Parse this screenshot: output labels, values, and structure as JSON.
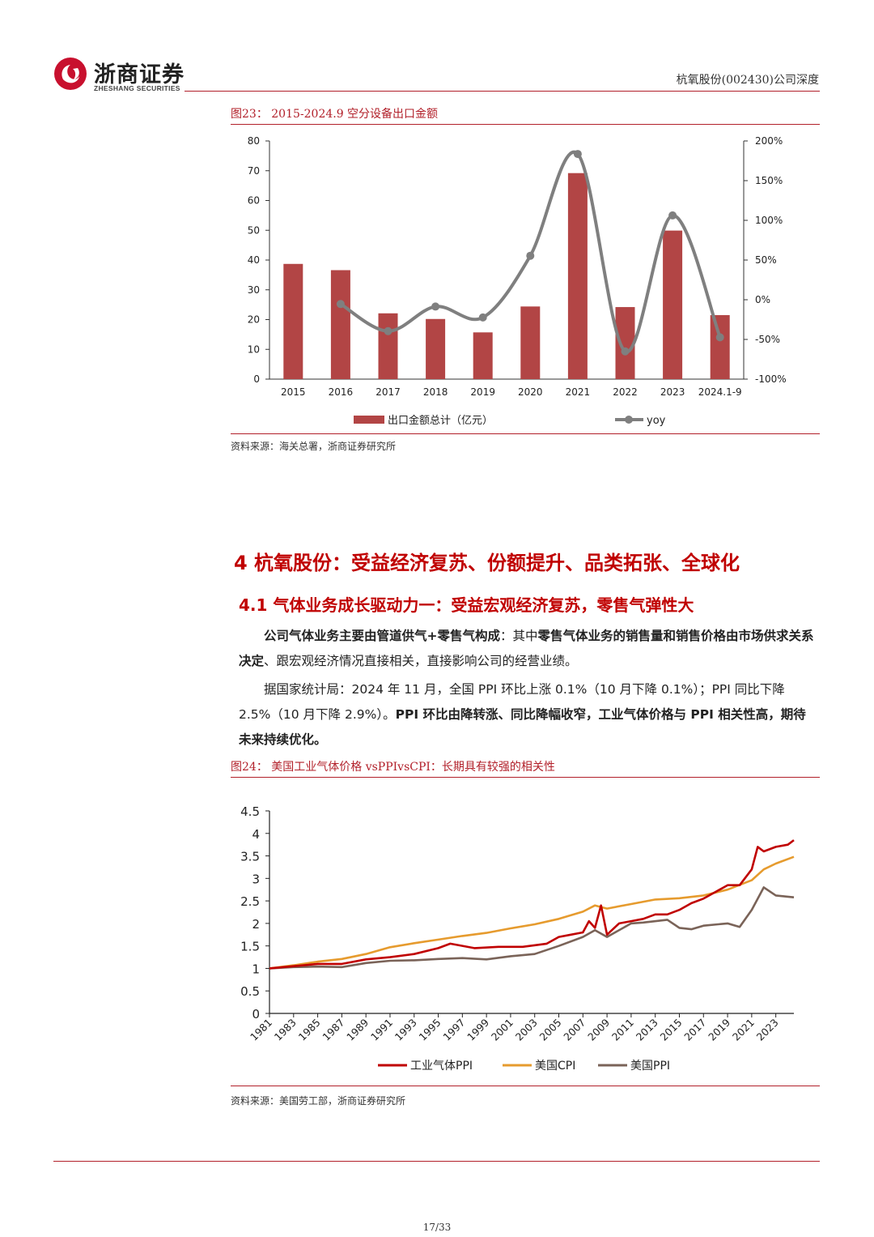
{
  "header": {
    "logo_cn": "浙商证券",
    "logo_en": "ZHESHANG SECURITIES",
    "report_title": "杭氧股份(002430)公司深度"
  },
  "figure23": {
    "title": "图23：  2015-2024.9 空分设备出口金额",
    "source": "资料来源：海关总署，浙商证券研究所"
  },
  "section": {
    "h1": "4 杭氧股份：受益经济复苏、份额提升、品类拓张、全球化",
    "h2": "4.1 气体业务成长驱动力一：受益宏观经济复苏，零售气弹性大",
    "p1_bold": "公司气体业务主要由管道供气+零售气构成",
    "p1_mid": "：其中",
    "p1_bold2": "零售气体业务的销售量和销售价格由市场供求关系决定",
    "p1_rest": "、跟宏观经济情况直接相关，直接影响公司的经营业绩。",
    "p2_text": "据国家统计局：2024 年 11 月，全国 PPI 环比上涨 0.1%（10 月下降 0.1%）；PPI 同比下降 2.5%（10 月下降 2.9%）。",
    "p2_bold": "PPI 环比由降转涨、同比降幅收窄，工业气体价格与 PPI 相关性高，期待未来持续优化。"
  },
  "figure24": {
    "title": "图24：  美国工业气体价格 vsPPIvsCPI：长期具有较强的相关性",
    "source": "资料来源：美国劳工部，浙商证券研究所"
  },
  "footer": {
    "page": "17/33"
  },
  "chart_data": [
    {
      "type": "bar",
      "categories": [
        "2015",
        "2016",
        "2017",
        "2018",
        "2019",
        "2020",
        "2021",
        "2022",
        "2023",
        "2024.1-9"
      ],
      "series": [
        {
          "name": "出口金额总计（亿元）",
          "type": "bar",
          "axis": "left",
          "values": [
            38.7,
            36.6,
            22.1,
            20.2,
            15.7,
            24.4,
            69.2,
            24.2,
            49.9,
            21.5
          ],
          "color": "#b24545"
        },
        {
          "name": "yoy",
          "type": "line",
          "axis": "right",
          "values": [
            null,
            -5.4,
            -39.6,
            -8.6,
            -22.3,
            55.4,
            183.6,
            -65.0,
            106.2,
            -47.3
          ],
          "color": "#7f7f7f"
        }
      ],
      "ylim_left": [
        0,
        80
      ],
      "yticks_left": [
        "0",
        "10",
        "20",
        "30",
        "40",
        "50",
        "60",
        "70",
        "80"
      ],
      "ylim_right": [
        -100,
        200
      ],
      "yticks_right": [
        "-100%",
        "-50%",
        "0%",
        "50%",
        "100%",
        "150%",
        "200%"
      ],
      "legend": "bottom"
    },
    {
      "type": "line",
      "x_ticks": [
        "1981",
        "1983",
        "1985",
        "1987",
        "1989",
        "1991",
        "1993",
        "1995",
        "1997",
        "1999",
        "2001",
        "2003",
        "2005",
        "2007",
        "2009",
        "2011",
        "2013",
        "2015",
        "2017",
        "2019",
        "2021",
        "2023"
      ],
      "ylim": [
        0,
        4.5
      ],
      "yticks": [
        "0",
        "0.5",
        "1",
        "1.5",
        "2",
        "2.5",
        "3",
        "3.5",
        "4",
        "4.5"
      ],
      "series": [
        {
          "name": "工业气体PPI",
          "color": "#c00000",
          "x": [
            1981,
            1983,
            1985,
            1987,
            1989,
            1991,
            1993,
            1995,
            1996,
            1998,
            2000,
            2002,
            2004,
            2005,
            2006,
            2007,
            2007.5,
            2008,
            2008.5,
            2009,
            2010,
            2011,
            2012,
            2013,
            2014,
            2015,
            2016,
            2017,
            2018,
            2019,
            2020,
            2021,
            2021.5,
            2022,
            2023,
            2024,
            2024.5
          ],
          "y": [
            1.0,
            1.05,
            1.1,
            1.1,
            1.2,
            1.25,
            1.32,
            1.45,
            1.55,
            1.45,
            1.48,
            1.48,
            1.55,
            1.7,
            1.75,
            1.8,
            2.05,
            1.9,
            2.4,
            1.75,
            2.0,
            2.05,
            2.1,
            2.2,
            2.2,
            2.3,
            2.45,
            2.55,
            2.7,
            2.85,
            2.85,
            3.2,
            3.7,
            3.6,
            3.7,
            3.75,
            3.85
          ]
        },
        {
          "name": "美国CPI",
          "color": "#e69b2e",
          "x": [
            1981,
            1983,
            1985,
            1987,
            1989,
            1991,
            1993,
            1995,
            1997,
            1999,
            2001,
            2003,
            2005,
            2007,
            2008,
            2009,
            2011,
            2013,
            2015,
            2017,
            2019,
            2021,
            2022,
            2023,
            2024.5
          ],
          "y": [
            1.0,
            1.07,
            1.15,
            1.21,
            1.32,
            1.47,
            1.56,
            1.64,
            1.72,
            1.79,
            1.89,
            1.98,
            2.1,
            2.26,
            2.4,
            2.33,
            2.43,
            2.53,
            2.56,
            2.62,
            2.75,
            2.96,
            3.2,
            3.33,
            3.48
          ]
        },
        {
          "name": "美国PPI",
          "color": "#7a6358",
          "x": [
            1981,
            1983,
            1985,
            1987,
            1989,
            1991,
            1993,
            1995,
            1997,
            1999,
            2001,
            2003,
            2005,
            2007,
            2008,
            2009,
            2011,
            2012,
            2014,
            2015,
            2016,
            2017,
            2019,
            2020,
            2021,
            2022,
            2023,
            2024.5
          ],
          "y": [
            1.0,
            1.03,
            1.04,
            1.03,
            1.12,
            1.17,
            1.18,
            1.21,
            1.23,
            1.2,
            1.27,
            1.32,
            1.5,
            1.7,
            1.85,
            1.7,
            2.0,
            2.02,
            2.08,
            1.9,
            1.87,
            1.95,
            2.0,
            1.92,
            2.3,
            2.8,
            2.62,
            2.58
          ]
        }
      ],
      "legend": "bottom"
    }
  ]
}
